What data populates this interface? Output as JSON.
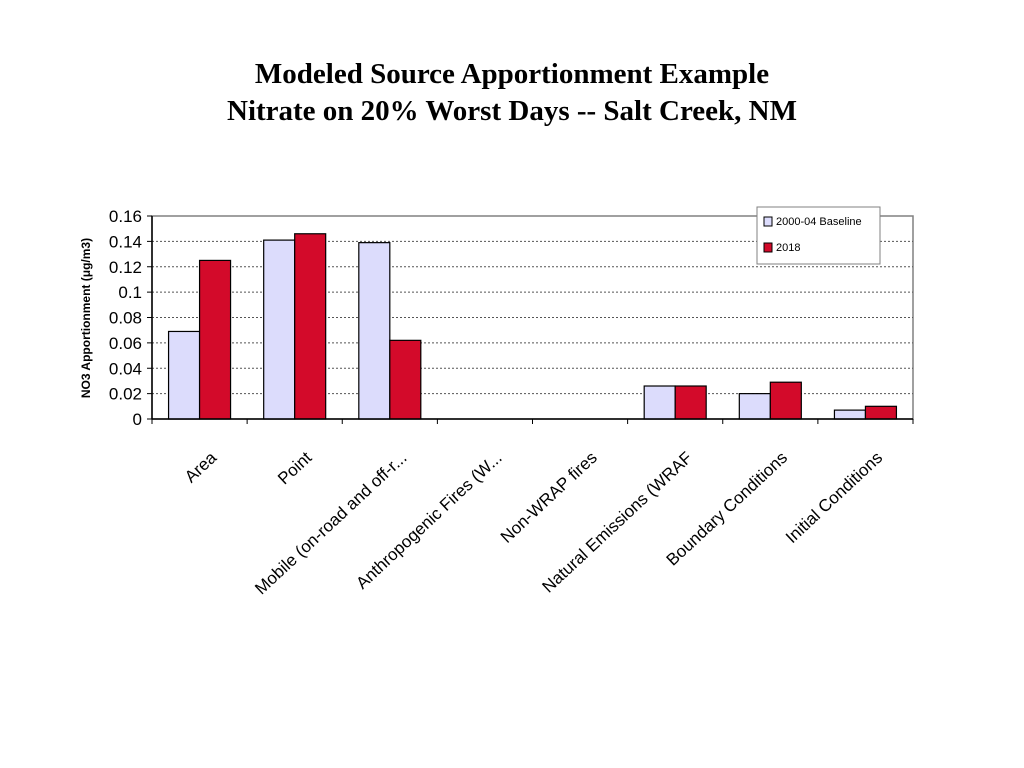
{
  "title": {
    "line1": "Modeled Source Apportionment Example",
    "line2": "Nitrate on 20% Worst Days --  Salt Creek, NM"
  },
  "chart_data": {
    "type": "bar",
    "ylabel": "NO3 Apportionment (μg/m3)",
    "ylim": [
      0,
      0.16
    ],
    "yticks": [
      "0",
      "0.02",
      "0.04",
      "0.06",
      "0.08",
      "0.1",
      "0.12",
      "0.14",
      "0.16"
    ],
    "grid": true,
    "legend_position": "top-right",
    "categories": [
      "Area",
      "Point",
      "Mobile (on-road and off-r...",
      "Anthropogenic Fires (W...",
      "Non-WRAP fires",
      "Natural Emissions (WRAF",
      "Boundary Conditions",
      "Initial Conditions"
    ],
    "series": [
      {
        "name": "2000-04 Baseline",
        "color": "#dcdcfc",
        "values": [
          0.069,
          0.141,
          0.139,
          0,
          0,
          0.026,
          0.02,
          0.007
        ]
      },
      {
        "name": "2018",
        "color": "#d30a2a",
        "values": [
          0.125,
          0.146,
          0.062,
          0,
          0,
          0.026,
          0.029,
          0.01
        ]
      }
    ]
  }
}
